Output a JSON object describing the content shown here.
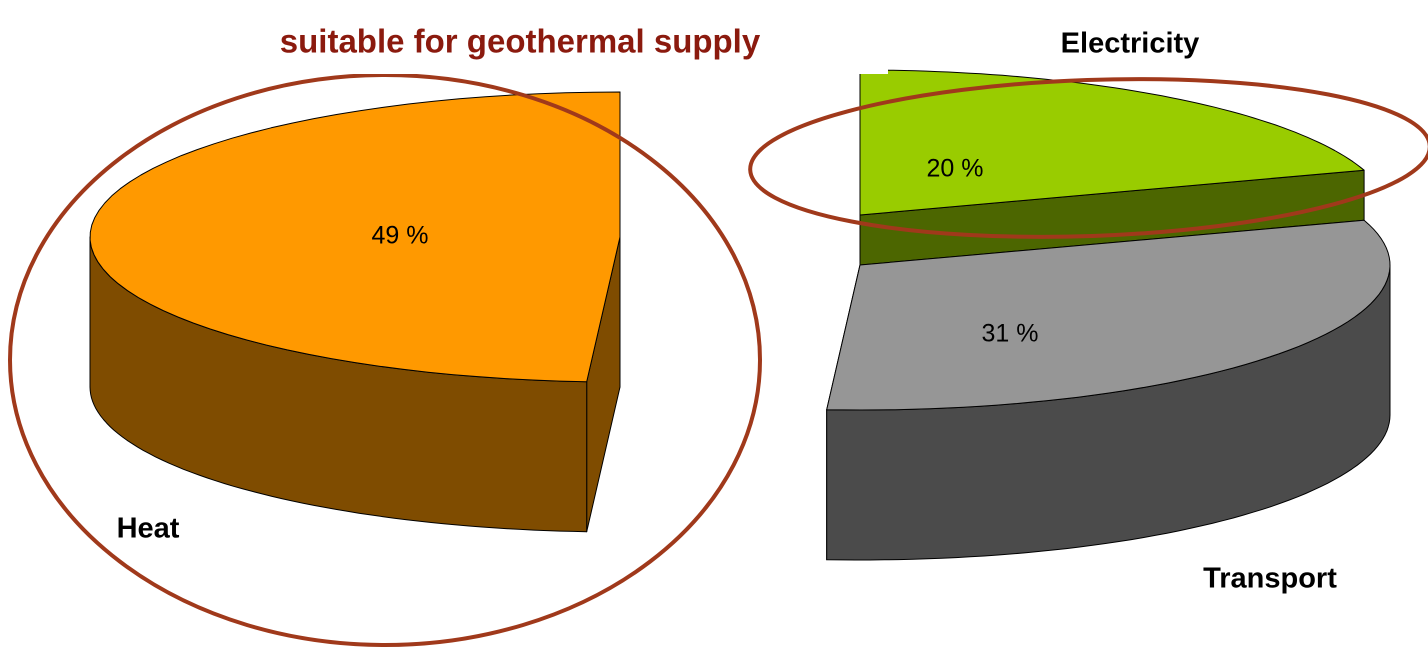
{
  "chart_data": {
    "type": "pie",
    "annotation": "suitable for geothermal supply",
    "categories": [
      "Heat",
      "Electricity",
      "Transport"
    ],
    "values": [
      49,
      20,
      31
    ],
    "value_labels": [
      "49 %",
      "20 %",
      "31 %"
    ],
    "colors": [
      "#ff9900",
      "#99cc00",
      "#969696"
    ],
    "side_colors": [
      "#7f4c00",
      "#4c6600",
      "#4b4b4b"
    ]
  }
}
